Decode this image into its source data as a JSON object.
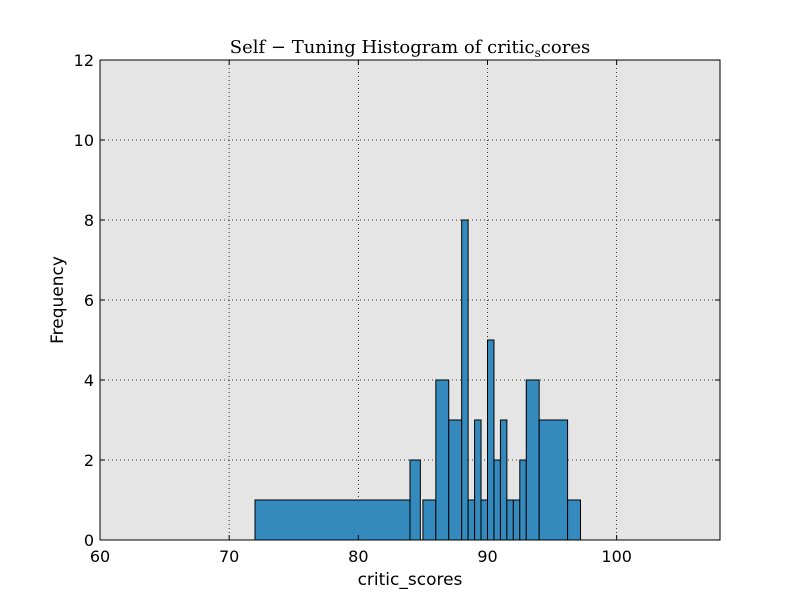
{
  "chart_data": {
    "type": "bar",
    "title": "Self − Tuning Histogram of critic_scores",
    "title_main": "Self − Tuning Histogram of critic",
    "title_sub": "s",
    "title_tail": "cores",
    "xlabel": "critic_scores",
    "ylabel": "Frequency",
    "xlim": [
      60,
      108
    ],
    "ylim": [
      0,
      12
    ],
    "xticks": [
      60,
      70,
      80,
      90,
      100
    ],
    "yticks": [
      0,
      2,
      4,
      6,
      8,
      10,
      12
    ],
    "grid": true,
    "bar_color": "#348abd",
    "background_color": "#e5e5e5",
    "bins": [
      {
        "x0": 72.0,
        "x1": 84.0,
        "count": 1
      },
      {
        "x0": 84.0,
        "x1": 84.8,
        "count": 2
      },
      {
        "x0": 84.8,
        "x1": 85.0,
        "count": 0
      },
      {
        "x0": 85.0,
        "x1": 86.0,
        "count": 1
      },
      {
        "x0": 86.0,
        "x1": 87.0,
        "count": 4
      },
      {
        "x0": 87.0,
        "x1": 88.0,
        "count": 3
      },
      {
        "x0": 88.0,
        "x1": 88.5,
        "count": 8
      },
      {
        "x0": 88.5,
        "x1": 89.0,
        "count": 1
      },
      {
        "x0": 89.0,
        "x1": 89.5,
        "count": 3
      },
      {
        "x0": 89.5,
        "x1": 90.0,
        "count": 1
      },
      {
        "x0": 90.0,
        "x1": 90.5,
        "count": 5
      },
      {
        "x0": 90.5,
        "x1": 91.0,
        "count": 2
      },
      {
        "x0": 91.0,
        "x1": 91.5,
        "count": 3
      },
      {
        "x0": 91.5,
        "x1": 92.0,
        "count": 1
      },
      {
        "x0": 92.0,
        "x1": 92.5,
        "count": 1
      },
      {
        "x0": 92.5,
        "x1": 93.0,
        "count": 2
      },
      {
        "x0": 93.0,
        "x1": 94.0,
        "count": 4
      },
      {
        "x0": 94.0,
        "x1": 96.2,
        "count": 3
      },
      {
        "x0": 96.2,
        "x1": 97.2,
        "count": 1
      }
    ]
  }
}
